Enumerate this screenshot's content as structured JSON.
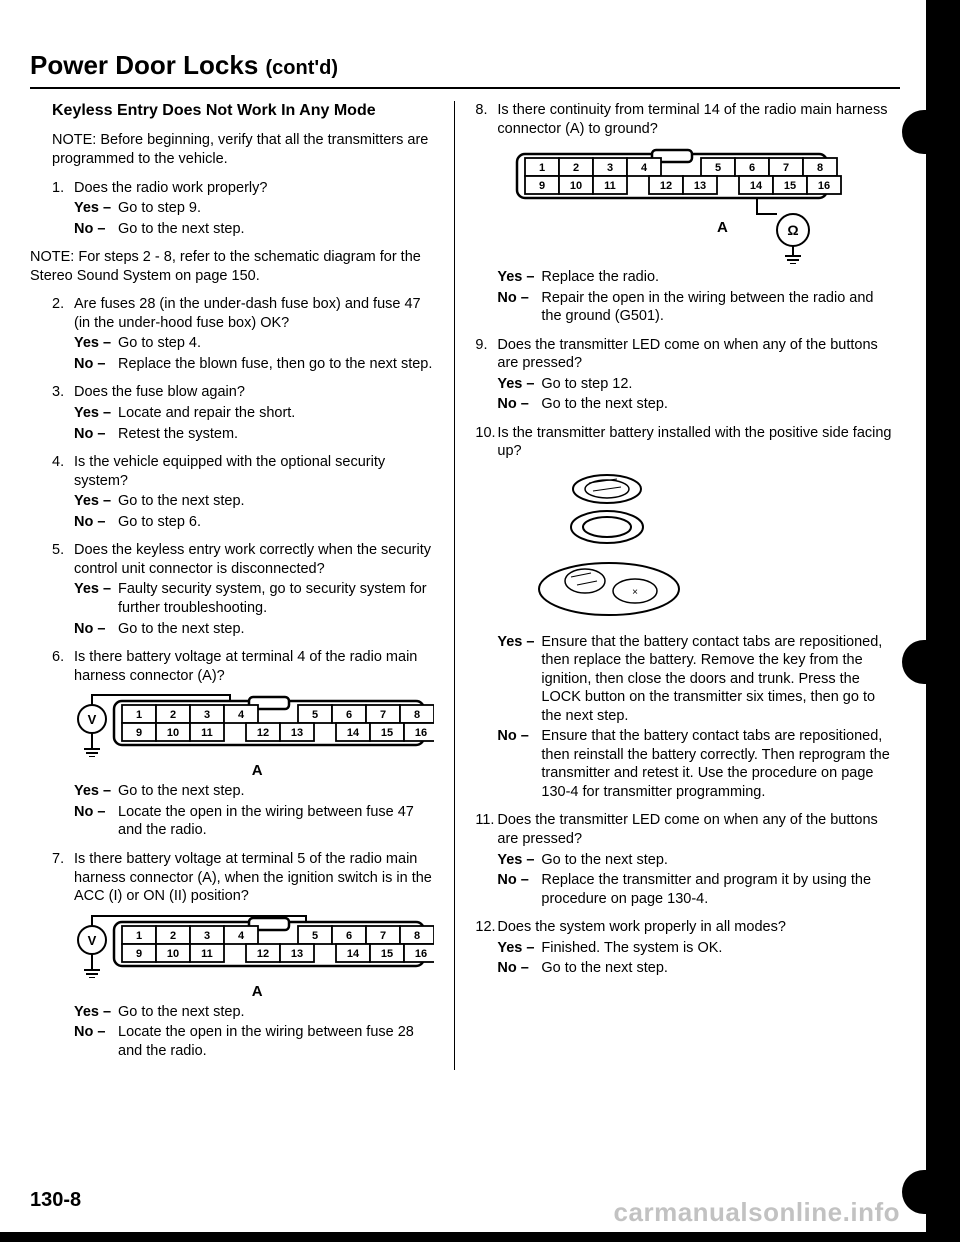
{
  "title_main": "Power Door Locks ",
  "title_contd": "(cont'd)",
  "page_number": "130-8",
  "watermark": "carmanualsonline.info",
  "left": {
    "subhead": "Keyless Entry Does Not Work In Any Mode",
    "note1": "NOTE: Before beginning, verify that all the transmitters are programmed to the vehicle.",
    "s1": {
      "num": "1.",
      "q": "Does the radio work properly?",
      "yes": "Go to step 9.",
      "no": "Go to the next step."
    },
    "note2": "NOTE: For steps 2 - 8, refer to the schematic diagram for the Stereo Sound System on page 150.",
    "s2": {
      "num": "2.",
      "q": "Are fuses 28 (in the under-dash fuse box) and fuse 47 (in the under-hood fuse box) OK?",
      "yes": "Go to step 4.",
      "no": "Replace the blown fuse, then go to the next step."
    },
    "s3": {
      "num": "3.",
      "q": "Does the fuse blow again?",
      "yes": "Locate and repair the short.",
      "no": "Retest the system."
    },
    "s4": {
      "num": "4.",
      "q": "Is the vehicle equipped with the optional security system?",
      "yes": "Go to the next step.",
      "no": "Go to step 6."
    },
    "s5": {
      "num": "5.",
      "q": "Does the keyless entry work correctly when the security control unit connector is disconnected?",
      "yes": "Faulty security system, go to security system for further troubleshooting.",
      "no": "Go to the next step."
    },
    "s6": {
      "num": "6.",
      "q": "Is there battery voltage at terminal 4 of the radio main harness connector (A)?",
      "yes": "Go to the next step.",
      "no": "Locate the open in the wiring between fuse 47 and the radio."
    },
    "s7": {
      "num": "7.",
      "q": "Is there battery voltage at terminal 5 of the radio main harness connector (A), when the ignition switch is in the ACC (I) or ON (II) position?",
      "yes": "Go to the next step.",
      "no": "Locate the open in the wiring between fuse 28 and the radio."
    },
    "conn_label": "A",
    "conn_cells_top": [
      "1",
      "2",
      "3",
      "4",
      "5",
      "6",
      "7",
      "8"
    ],
    "conn_cells_bot": [
      "9",
      "10",
      "11",
      "12",
      "13",
      "14",
      "15",
      "16"
    ]
  },
  "right": {
    "s8": {
      "num": "8.",
      "q": "Is there continuity from terminal 14 of the radio main harness connector (A) to ground?",
      "yes": "Replace the radio.",
      "no": "Repair the open in the wiring between the radio and the ground (G501)."
    },
    "s9": {
      "num": "9.",
      "q": "Does the transmitter LED come on when any of the buttons are pressed?",
      "yes": "Go to step 12.",
      "no": "Go to the next step."
    },
    "s10": {
      "num": "10.",
      "q": "Is the transmitter battery installed with the positive side facing up?",
      "yes": "Ensure that the battery contact tabs are repositioned, then replace the battery. Remove the key from the ignition, then close the doors and trunk. Press the LOCK button on the transmitter six times, then go to the next step.",
      "no": "Ensure that the battery contact tabs are repositioned, then reinstall the battery correctly. Then reprogram the transmitter and retest it. Use the procedure on page 130-4 for transmitter programming."
    },
    "s11": {
      "num": "11.",
      "q": "Does the transmitter LED come on when any of the buttons are pressed?",
      "yes": "Go to the next step.",
      "no": "Replace the transmitter and program it by using the procedure on page 130-4."
    },
    "s12": {
      "num": "12.",
      "q": "Does the system work properly in all modes?",
      "yes": "Finished. The system is OK.",
      "no": "Go to the next step."
    },
    "conn_label": "A"
  },
  "yes_lbl": "Yes –",
  "no_lbl": "No –"
}
